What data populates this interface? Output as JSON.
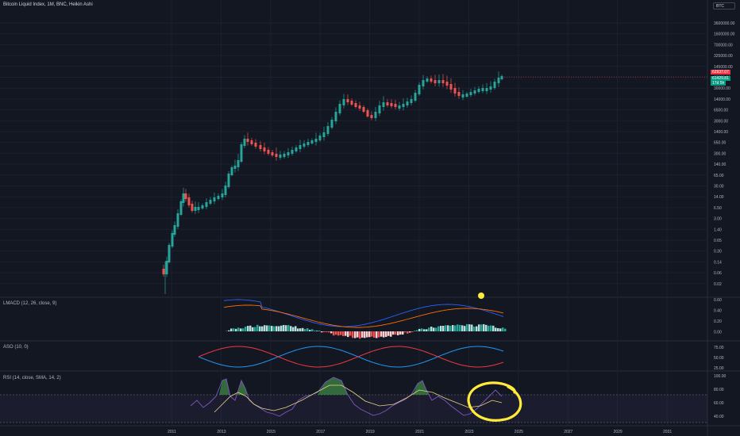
{
  "header": {
    "title": "Bitcoin Liquid Index, 1M, BNC, Heikin Ashi",
    "symbol_search": "BTC"
  },
  "price_tags": {
    "last_price": "62937.07",
    "close_price": "61429.81",
    "countdown": "17d 5h",
    "colors": {
      "last": "#f23645",
      "close": "#089981"
    }
  },
  "main_axis": {
    "scale": "log",
    "labels": [
      "3600000.00",
      "1600000.00",
      "700000.00",
      "325000.00",
      "145000.00",
      "65000.00",
      "30000.00",
      "14000.00",
      "6500.00",
      "3000.00",
      "1400.00",
      "650.00",
      "300.00",
      "140.00",
      "65.00",
      "30.00",
      "14.00",
      "6.50",
      "3.00",
      "1.40",
      "0.65",
      "0.30",
      "0.14",
      "0.06",
      "0.02"
    ]
  },
  "time_axis": {
    "labels": [
      "2011",
      "2013",
      "2015",
      "2017",
      "2019",
      "2021",
      "2023",
      "2025",
      "2027",
      "2029",
      "2031"
    ]
  },
  "lmacd": {
    "title": "LMACD (12, 26, close, 9)",
    "labels": [
      "0.60",
      "0.40",
      "0.20",
      "0.00"
    ]
  },
  "aso": {
    "title": "ASO (10, 0)",
    "labels": [
      "75.00",
      "50.00",
      "25.00"
    ]
  },
  "rsi": {
    "title": "RSI (14, close, SMA, 14, 2)",
    "labels": [
      "100.00",
      "80.00",
      "60.00",
      "40.00"
    ]
  },
  "colors": {
    "background": "#131722",
    "bull": "#26a69a",
    "bear": "#ef5350",
    "macd_line": "#2962ff",
    "signal_line": "#ff6d00",
    "aso_bull": "#2196f3",
    "aso_bear": "#f23645",
    "rsi_line": "#7e57c2",
    "rsi_sma": "#e6d585",
    "highlight": "#ffeb3b"
  }
}
